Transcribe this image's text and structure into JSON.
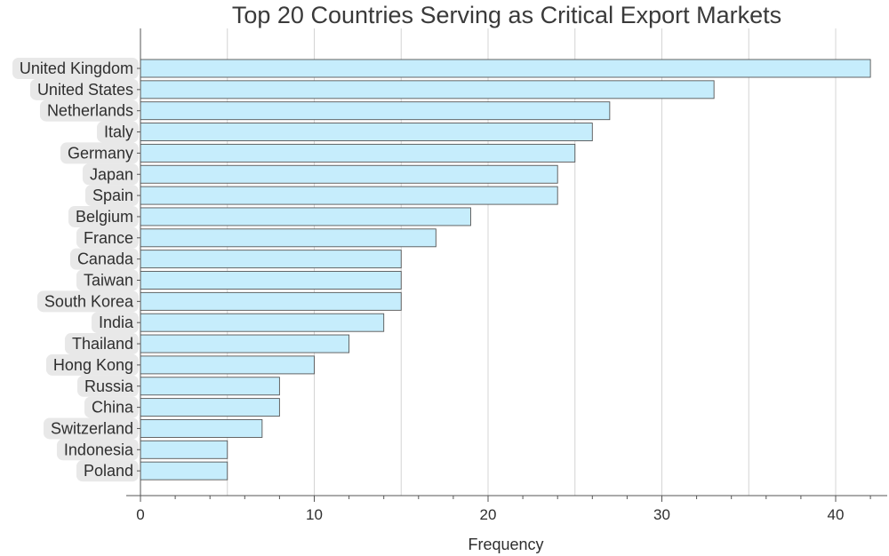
{
  "chart_data": {
    "type": "bar",
    "orientation": "horizontal",
    "title": "Top 20 Countries Serving as Critical Export Markets",
    "xlabel": "Frequency",
    "ylabel": "",
    "categories": [
      "United Kingdom",
      "United States",
      "Netherlands",
      "Italy",
      "Germany",
      "Japan",
      "Spain",
      "Belgium",
      "France",
      "Canada",
      "Taiwan",
      "South Korea",
      "India",
      "Thailand",
      "Hong Kong",
      "Russia",
      "China",
      "Switzerland",
      "Indonesia",
      "Poland"
    ],
    "values": [
      42,
      33,
      27,
      26,
      25,
      24,
      24,
      19,
      17,
      15,
      15,
      15,
      14,
      12,
      10,
      8,
      8,
      7,
      5,
      5
    ],
    "xlim": [
      0,
      42
    ],
    "xticks": [
      0,
      10,
      20,
      30,
      40
    ],
    "grid": "vertical",
    "colors": {
      "bar_fill": "#c6edfc",
      "bar_stroke": "#555555",
      "grid": "#d4d4d4",
      "label_bg": "#e8e8e8",
      "axis": "#555555"
    }
  }
}
